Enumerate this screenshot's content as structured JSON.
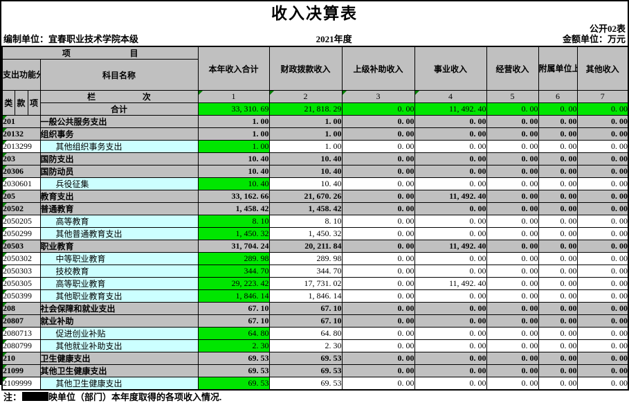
{
  "page": {
    "title": "收入决算表",
    "form_code": "公开02表",
    "prepared_by": "编制单位：宜春职业技术学院本级",
    "fiscal_year": "2021年度",
    "unit_label": "金额单位：万元",
    "note_prefix": "注：",
    "note_text": "映单位（部门）本年度取得的各项收入情况.",
    "colors": {
      "highlight_green": "#00e600",
      "header_gray": "#c0c0c0",
      "detail_cyan": "#ccffff",
      "triangle_green": "#008000"
    }
  },
  "table": {
    "header": {
      "project_left": "项",
      "project_right": "目",
      "code_header": "支出功能分类科目编码",
      "subject_name": "科目名称",
      "col_class": "类",
      "col_section": "款",
      "col_item": "项",
      "lanci_left": "栏",
      "lanci_right": "次",
      "total_label": "合计",
      "value_columns": [
        "本年收入合计",
        "财政拨款收入",
        "上级补助收入",
        "事业收入",
        "经营收入",
        "附属单位上缴收入",
        "其他收入"
      ],
      "column_numbers": [
        "1",
        "2",
        "3",
        "4",
        "5",
        "6",
        "7"
      ]
    },
    "total_row": {
      "values": [
        "33, 310. 69",
        "21, 818. 29",
        "0. 00",
        "11, 492. 40",
        "0. 00",
        "0. 00",
        "0. 00"
      ]
    },
    "rows": [
      {
        "code": "201",
        "name": "一般公共服务支出",
        "level": "summary",
        "values": [
          "1. 00",
          "1. 00",
          "0. 00",
          "0. 00",
          "0. 00",
          "0. 00",
          "0. 00"
        ]
      },
      {
        "code": "20132",
        "name": "组织事务",
        "level": "summary",
        "values": [
          "1. 00",
          "1. 00",
          "0. 00",
          "0. 00",
          "0. 00",
          "0. 00",
          "0. 00"
        ]
      },
      {
        "code": "2013299",
        "name": "其他组织事务支出",
        "level": "detail",
        "values": [
          "1. 00",
          "1. 00",
          "0. 00",
          "0. 00",
          "0. 00",
          "0. 00",
          "0. 00"
        ]
      },
      {
        "code": "203",
        "name": "国防支出",
        "level": "summary",
        "values": [
          "10. 40",
          "10. 40",
          "0. 00",
          "0. 00",
          "0. 00",
          "0. 00",
          "0. 00"
        ]
      },
      {
        "code": "20306",
        "name": "国防动员",
        "level": "summary",
        "values": [
          "10. 40",
          "10. 40",
          "0. 00",
          "0. 00",
          "0. 00",
          "0. 00",
          "0. 00"
        ]
      },
      {
        "code": "2030601",
        "name": "兵役征集",
        "level": "detail",
        "values": [
          "10. 40",
          "10. 40",
          "0. 00",
          "0. 00",
          "0. 00",
          "0. 00",
          "0. 00"
        ]
      },
      {
        "code": "205",
        "name": "教育支出",
        "level": "summary",
        "values": [
          "33, 162. 66",
          "21, 670. 26",
          "0. 00",
          "11, 492. 40",
          "0. 00",
          "0. 00",
          "0. 00"
        ]
      },
      {
        "code": "20502",
        "name": "普通教育",
        "level": "summary",
        "values": [
          "1, 458. 42",
          "1, 458. 42",
          "0. 00",
          "0. 00",
          "0. 00",
          "0. 00",
          "0. 00"
        ]
      },
      {
        "code": "2050205",
        "name": "高等教育",
        "level": "detail",
        "values": [
          "8. 10",
          "8. 10",
          "0. 00",
          "0. 00",
          "0. 00",
          "0. 00",
          "0. 00"
        ]
      },
      {
        "code": "2050299",
        "name": "其他普通教育支出",
        "level": "detail",
        "values": [
          "1, 450. 32",
          "1, 450. 32",
          "0. 00",
          "0. 00",
          "0. 00",
          "0. 00",
          "0. 00"
        ]
      },
      {
        "code": "20503",
        "name": "职业教育",
        "level": "summary",
        "values": [
          "31, 704. 24",
          "20, 211. 84",
          "0. 00",
          "11, 492. 40",
          "0. 00",
          "0. 00",
          "0. 00"
        ]
      },
      {
        "code": "2050302",
        "name": "中等职业教育",
        "level": "detail",
        "values": [
          "289. 98",
          "289. 98",
          "0. 00",
          "0. 00",
          "0. 00",
          "0. 00",
          "0. 00"
        ]
      },
      {
        "code": "2050303",
        "name": "技校教育",
        "level": "detail",
        "values": [
          "344. 70",
          "344. 70",
          "0. 00",
          "0. 00",
          "0. 00",
          "0. 00",
          "0. 00"
        ]
      },
      {
        "code": "2050305",
        "name": "高等职业教育",
        "level": "detail",
        "values": [
          "29, 223. 42",
          "17, 731. 02",
          "0. 00",
          "11, 492. 40",
          "0. 00",
          "0. 00",
          "0. 00"
        ]
      },
      {
        "code": "2050399",
        "name": "其他职业教育支出",
        "level": "detail",
        "values": [
          "1, 846. 14",
          "1, 846. 14",
          "0. 00",
          "0. 00",
          "0. 00",
          "0. 00",
          "0. 00"
        ]
      },
      {
        "code": "208",
        "name": "社会保障和就业支出",
        "level": "summary",
        "values": [
          "67. 10",
          "67. 10",
          "0. 00",
          "0. 00",
          "0. 00",
          "0. 00",
          "0. 00"
        ]
      },
      {
        "code": "20807",
        "name": "就业补助",
        "level": "summary",
        "values": [
          "67. 10",
          "67. 10",
          "0. 00",
          "0. 00",
          "0. 00",
          "0. 00",
          "0. 00"
        ]
      },
      {
        "code": "2080713",
        "name": "促进创业补贴",
        "level": "detail",
        "values": [
          "64. 80",
          "64. 80",
          "0. 00",
          "0. 00",
          "0. 00",
          "0. 00",
          "0. 00"
        ]
      },
      {
        "code": "2080799",
        "name": "其他就业补助支出",
        "level": "detail",
        "values": [
          "2. 30",
          "2. 30",
          "0. 00",
          "0. 00",
          "0. 00",
          "0. 00",
          "0. 00"
        ]
      },
      {
        "code": "210",
        "name": "卫生健康支出",
        "level": "summary",
        "values": [
          "69. 53",
          "69. 53",
          "0. 00",
          "0. 00",
          "0. 00",
          "0. 00",
          "0. 00"
        ]
      },
      {
        "code": "21099",
        "name": "其他卫生健康支出",
        "level": "summary",
        "values": [
          "69. 53",
          "69. 53",
          "0. 00",
          "0. 00",
          "0. 00",
          "0. 00",
          "0. 00"
        ]
      },
      {
        "code": "2109999",
        "name": "其他卫生健康支出",
        "level": "detail",
        "values": [
          "69. 53",
          "69. 53",
          "0. 00",
          "0. 00",
          "0. 00",
          "0. 00",
          "0. 00"
        ]
      }
    ]
  }
}
